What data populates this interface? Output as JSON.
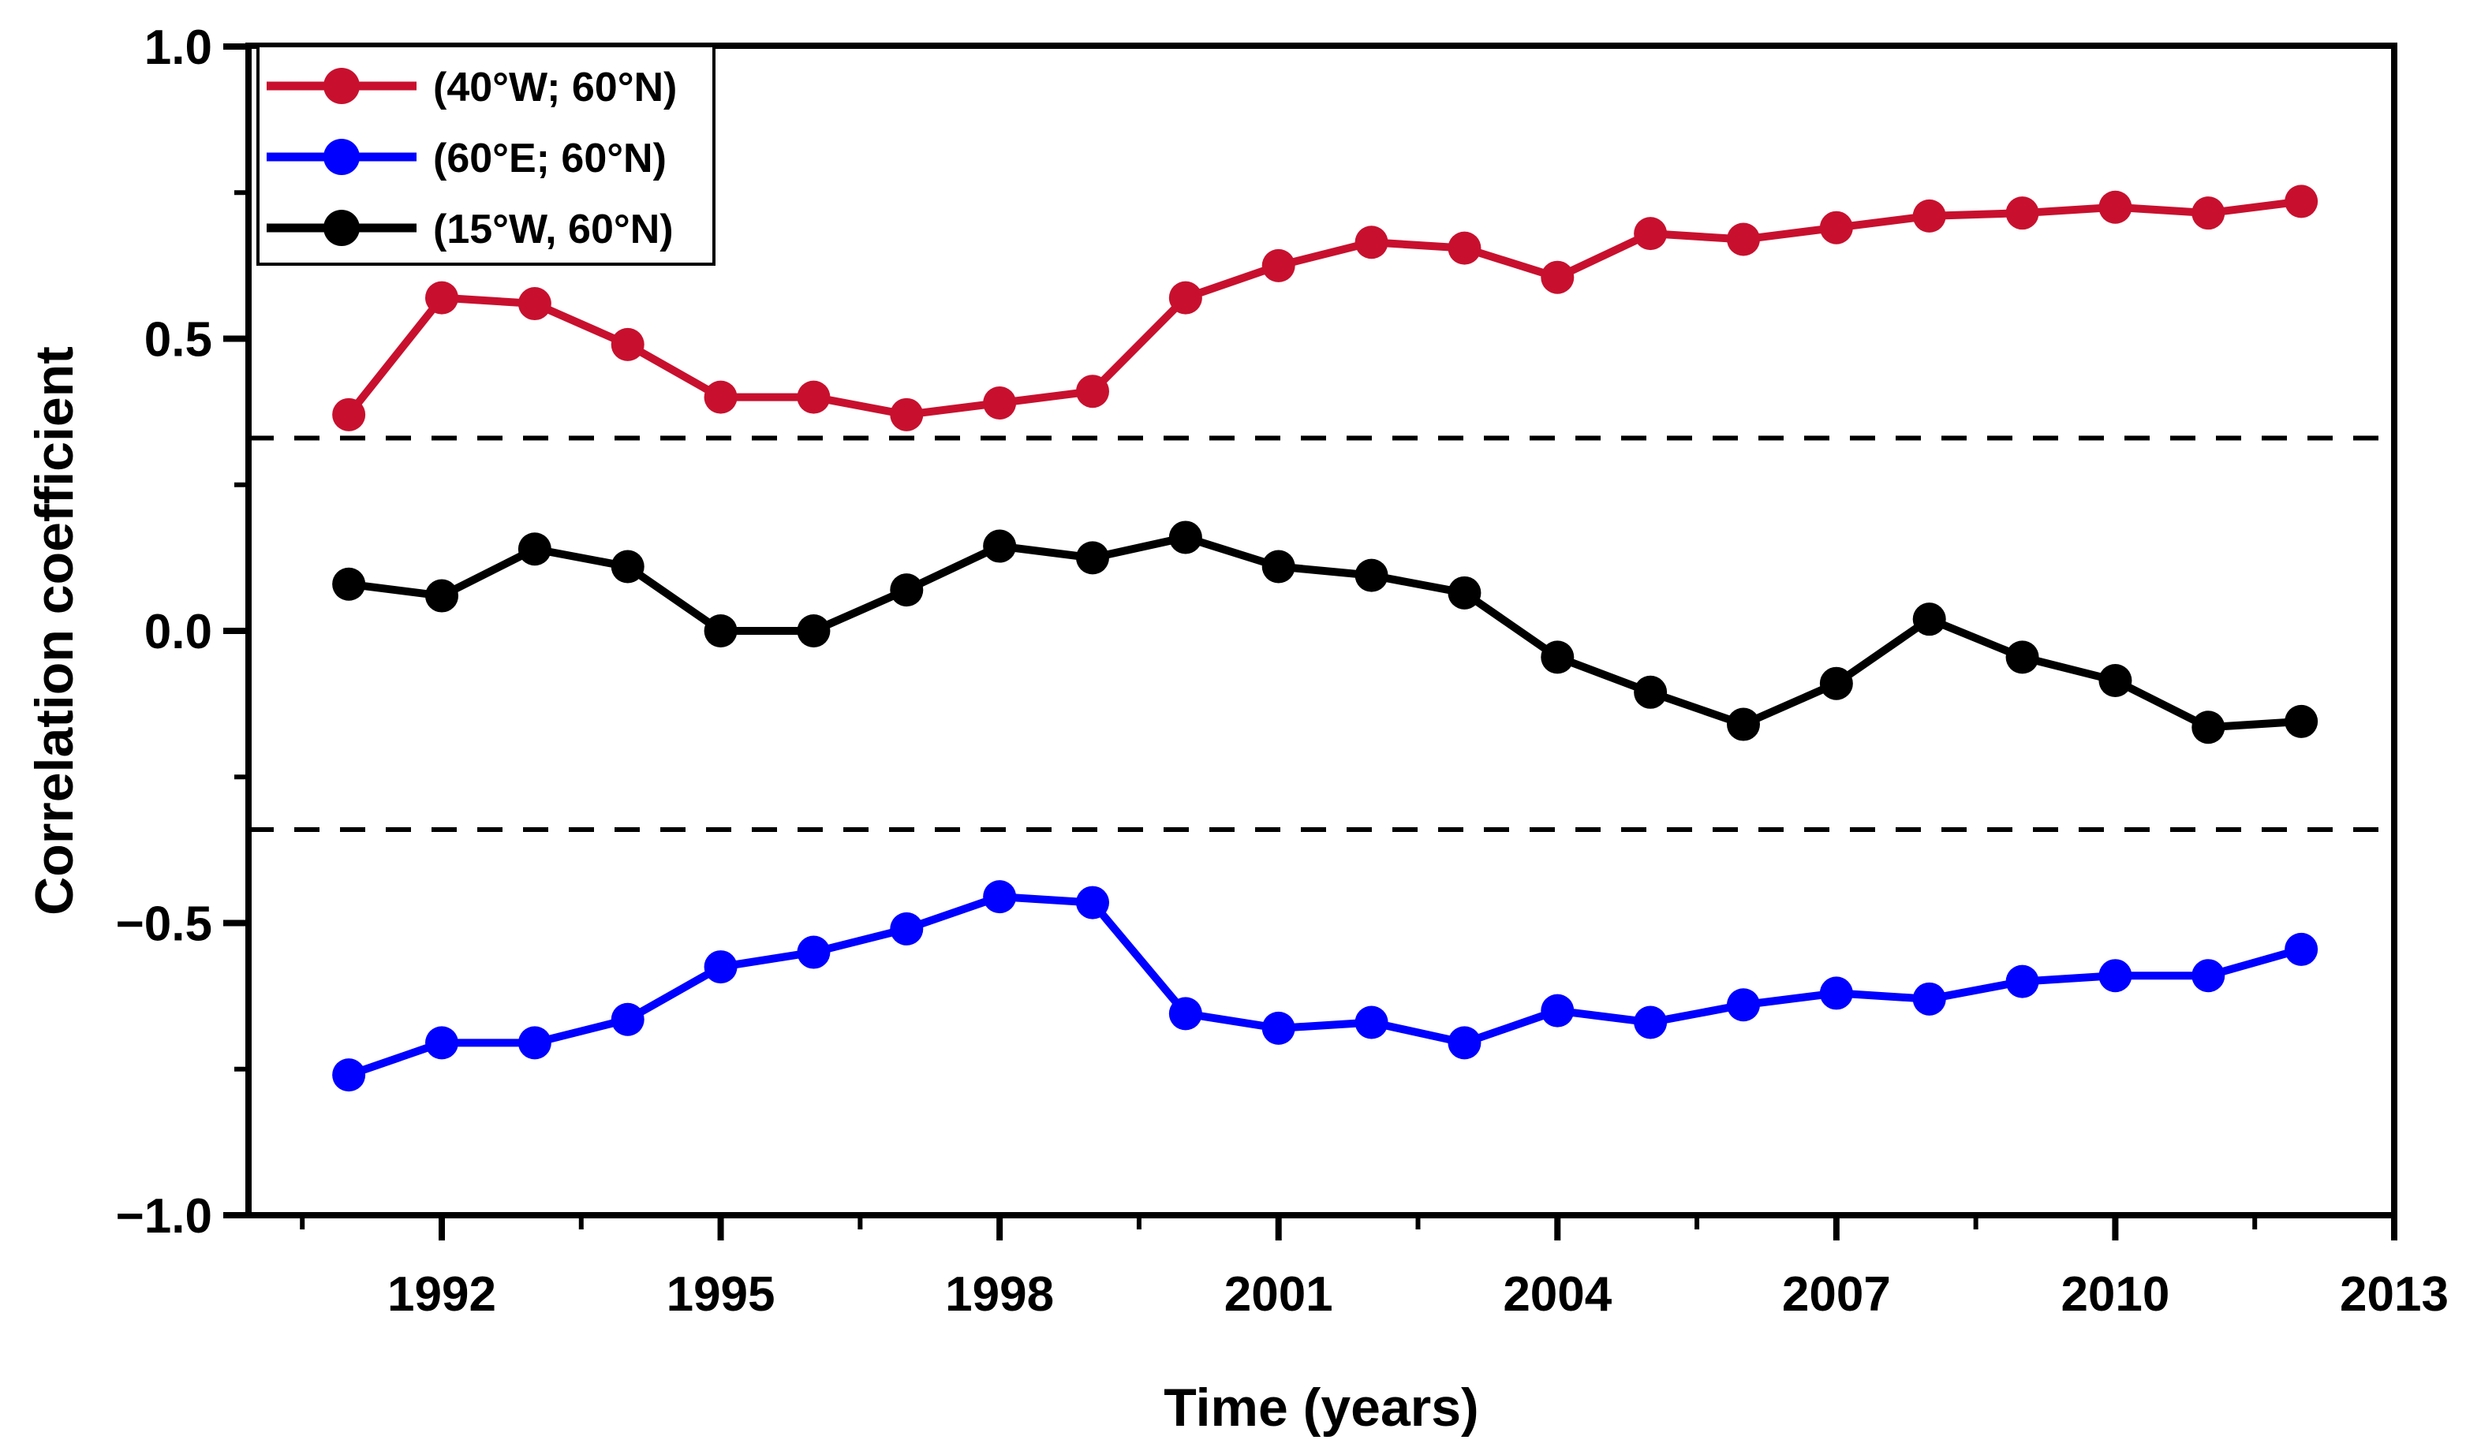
{
  "figure": {
    "background": "#ffffff",
    "frame_color": "#000000"
  },
  "chart_data": {
    "type": "line",
    "title": "",
    "xlabel": "Time (years)",
    "ylabel": "Correlation coefficient",
    "xlim": [
      1989.92,
      2013
    ],
    "ylim": [
      -1.0,
      1.0
    ],
    "grid": "off",
    "legend_position": "top-left",
    "x": [
      1991,
      1992,
      1993,
      1994,
      1995,
      1996,
      1997,
      1998,
      1999,
      2000,
      2001,
      2002,
      2003,
      2004,
      2005,
      2006,
      2007,
      2008,
      2009,
      2010,
      2011,
      2012
    ],
    "series": [
      {
        "name": "(40°W; 60°N)",
        "color": "#C8102E",
        "values": [
          0.37,
          0.57,
          0.56,
          0.49,
          0.4,
          0.4,
          0.37,
          0.39,
          0.41,
          0.57,
          0.625,
          0.665,
          0.655,
          0.605,
          0.68,
          0.67,
          0.69,
          0.71,
          0.715,
          0.725,
          0.715,
          0.735
        ]
      },
      {
        "name": "(60°E; 60°N)",
        "color": "#0000FF",
        "values": [
          -0.76,
          -0.705,
          -0.705,
          -0.665,
          -0.575,
          -0.55,
          -0.51,
          -0.455,
          -0.465,
          -0.655,
          -0.68,
          -0.67,
          -0.705,
          -0.65,
          -0.67,
          -0.64,
          -0.62,
          -0.63,
          -0.6,
          -0.59,
          -0.59,
          -0.545
        ]
      },
      {
        "name": "(15°W, 60°N)",
        "color": "#000000",
        "values": [
          0.08,
          0.06,
          0.14,
          0.11,
          0.0,
          0.0,
          0.07,
          0.145,
          0.125,
          0.16,
          0.11,
          0.095,
          0.065,
          -0.045,
          -0.105,
          -0.16,
          -0.09,
          0.02,
          -0.045,
          -0.085,
          -0.165,
          -0.155
        ]
      }
    ],
    "significance_lines": {
      "style": "dashed",
      "color": "#000000",
      "values": [
        0.33,
        -0.34
      ]
    },
    "x_major_ticks": [
      1992,
      1995,
      1998,
      2001,
      2004,
      2007,
      2010,
      2013
    ],
    "x_major_tick_labels": [
      "1992",
      "1995",
      "1998",
      "2001",
      "2004",
      "2007",
      "2010",
      "2013"
    ],
    "x_minor_ticks": [
      1990.5,
      1993.5,
      1996.5,
      1999.5,
      2002.5,
      2005.5,
      2008.5,
      2011.5
    ],
    "y_major_ticks": [
      1.0,
      0.5,
      0.0,
      -0.5,
      -1.0
    ],
    "y_major_tick_labels": [
      "1.0",
      "0.5",
      "0.0",
      "−0.5",
      "−1.0"
    ],
    "y_minor_ticks": [
      0.75,
      0.25,
      -0.25,
      -0.75
    ]
  }
}
